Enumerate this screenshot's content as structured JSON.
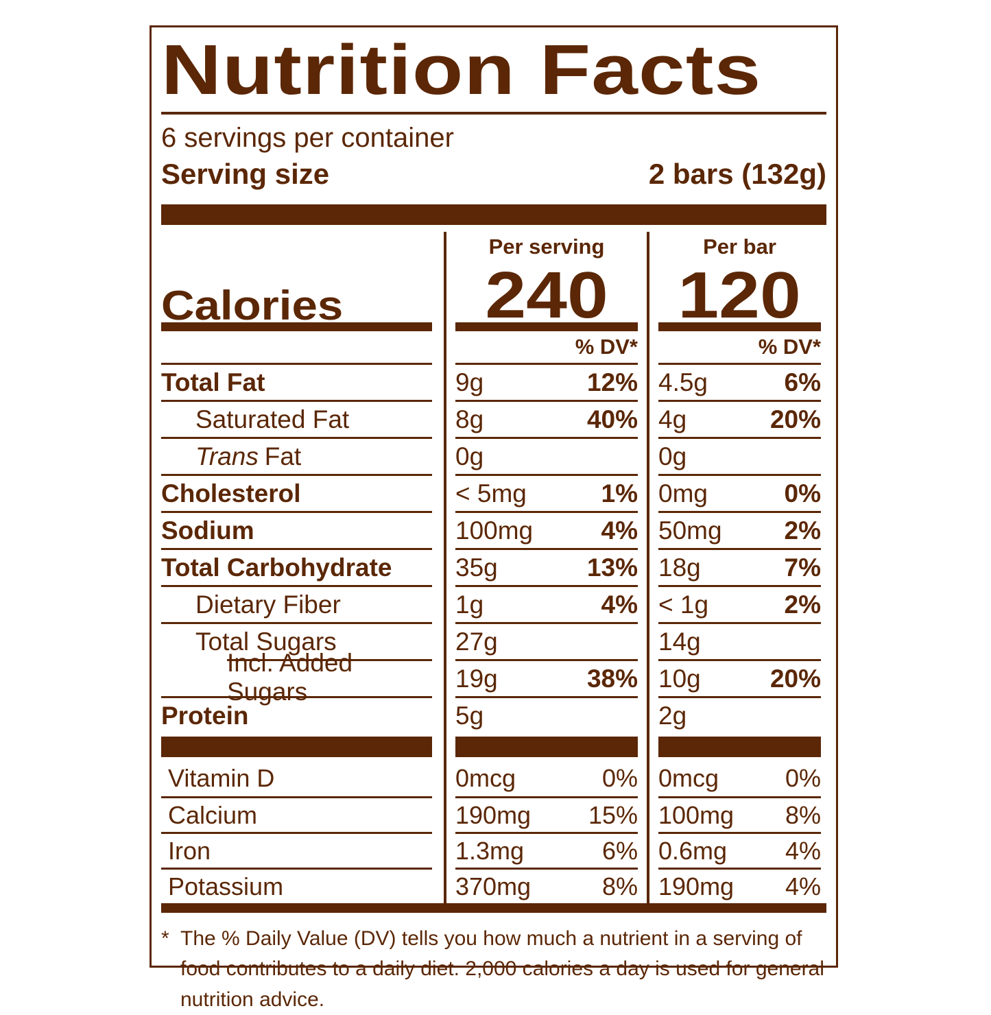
{
  "colors": {
    "brown": "#5B2706",
    "background": "#FFFFFF"
  },
  "label": {
    "title": "Nutrition Facts",
    "servings_per_container": "6 servings per container",
    "serving_size_label": "Serving size",
    "serving_size_value": "2 bars (132g)",
    "col2_header": "Per serving",
    "col3_header": "Per bar",
    "calories_label": "Calories",
    "calories_per_serving": "240",
    "calories_per_bar": "120",
    "dv_header": "% DV*",
    "footnote_marker": "*",
    "footnote": "The % Daily Value (DV) tells you how much a nutrient in a serving of food contributes to a daily diet. 2,000 calories a day is used for general nutrition advice."
  },
  "nutrients": [
    {
      "it": "",
      "name": "Total Fat",
      "ps": "9g",
      "ps_dv": "12%",
      "pb": "4.5g",
      "pb_dv": "6%"
    },
    {
      "it": "",
      "name": "Saturated Fat",
      "ps": "8g",
      "ps_dv": "40%",
      "pb": "4g",
      "pb_dv": "20%"
    },
    {
      "it": "Trans",
      "name": "Fat",
      "ps": "0g",
      "ps_dv": "",
      "pb": "0g",
      "pb_dv": ""
    },
    {
      "it": "",
      "name": "Cholesterol",
      "ps": "< 5mg",
      "ps_dv": "1%",
      "pb": "0mg",
      "pb_dv": "0%"
    },
    {
      "it": "",
      "name": "Sodium",
      "ps": "100mg",
      "ps_dv": "4%",
      "pb": "50mg",
      "pb_dv": "2%"
    },
    {
      "it": "",
      "name": "Total Carbohydrate",
      "ps": "35g",
      "ps_dv": "13%",
      "pb": "18g",
      "pb_dv": "7%"
    },
    {
      "it": "",
      "name": "Dietary Fiber",
      "ps": "1g",
      "ps_dv": "4%",
      "pb": "< 1g",
      "pb_dv": "2%"
    },
    {
      "it": "",
      "name": "Total Sugars",
      "ps": "27g",
      "ps_dv": "",
      "pb": "14g",
      "pb_dv": ""
    },
    {
      "it": "",
      "name": "Incl. Added Sugars",
      "ps": "19g",
      "ps_dv": "38%",
      "pb": "10g",
      "pb_dv": "20%"
    },
    {
      "it": "",
      "name": "Protein",
      "ps": "5g",
      "ps_dv": "",
      "pb": "2g",
      "pb_dv": ""
    }
  ],
  "vitamins": [
    {
      "name": "Vitamin D",
      "ps": "0mcg",
      "ps_dv": "0%",
      "pb": "0mcg",
      "pb_dv": "0%"
    },
    {
      "name": "Calcium",
      "ps": "190mg",
      "ps_dv": "15%",
      "pb": "100mg",
      "pb_dv": "8%"
    },
    {
      "name": "Iron",
      "ps": "1.3mg",
      "ps_dv": "6%",
      "pb": "0.6mg",
      "pb_dv": "4%"
    },
    {
      "name": "Potassium",
      "ps": "370mg",
      "ps_dv": "8%",
      "pb": "190mg",
      "pb_dv": "4%"
    }
  ]
}
